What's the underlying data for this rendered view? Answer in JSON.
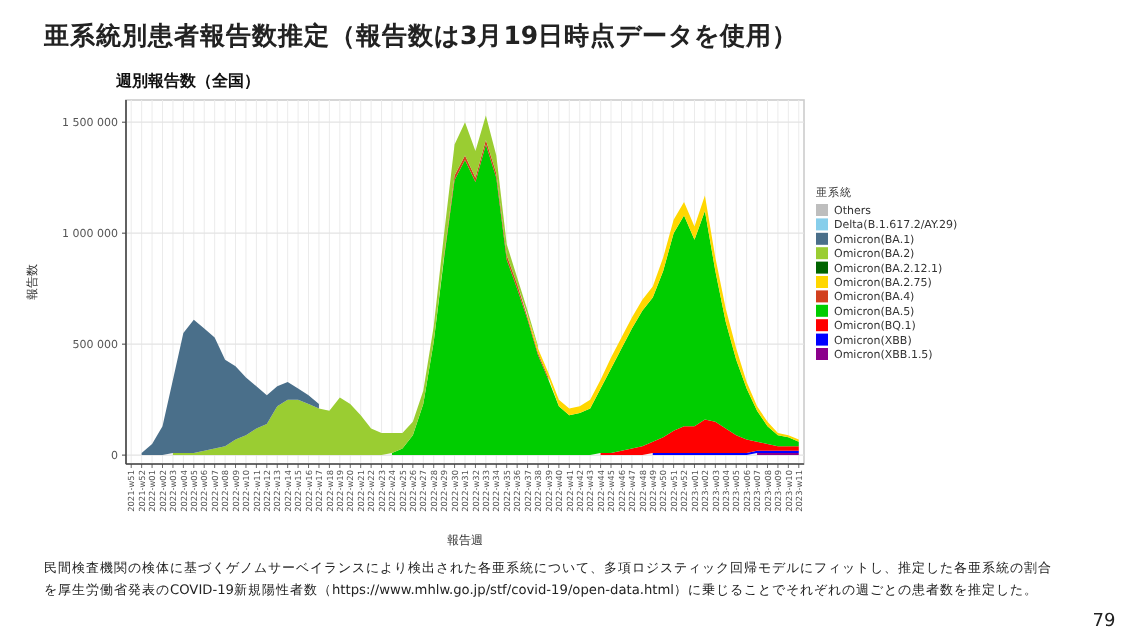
{
  "chart_data": {
    "type": "area",
    "stacked": true,
    "title": "亜系統別患者報告数推定（報告数は3月19日時点データを使用）",
    "subtitle": "週別報告数（全国）",
    "xlabel": "報告週",
    "ylabel": "報告数",
    "legend_title": "亜系統",
    "legend": "right",
    "grid": true,
    "categories": [
      "2021-w51",
      "2021-w52",
      "2022-w01",
      "2022-w02",
      "2022-w03",
      "2022-w04",
      "2022-w05",
      "2022-w06",
      "2022-w07",
      "2022-w08",
      "2022-w09",
      "2022-w10",
      "2022-w11",
      "2022-w12",
      "2022-w13",
      "2022-w14",
      "2022-w15",
      "2022-w16",
      "2022-w17",
      "2022-w18",
      "2022-w19",
      "2022-w20",
      "2022-w21",
      "2022-w22",
      "2022-w23",
      "2022-w24",
      "2022-w25",
      "2022-w26",
      "2022-w27",
      "2022-w28",
      "2022-w29",
      "2022-w30",
      "2022-w31",
      "2022-w32",
      "2022-w33",
      "2022-w34",
      "2022-w35",
      "2022-w36",
      "2022-w37",
      "2022-w38",
      "2022-w39",
      "2022-w40",
      "2022-w41",
      "2022-w42",
      "2022-w43",
      "2022-w44",
      "2022-w45",
      "2022-w46",
      "2022-w47",
      "2022-w48",
      "2022-w49",
      "2022-w50",
      "2022-w51",
      "2022-w52",
      "2023-w01",
      "2023-w02",
      "2023-w03",
      "2023-w04",
      "2023-w05",
      "2023-w06",
      "2023-w07",
      "2023-w08",
      "2023-w09",
      "2023-w10",
      "2023-w11"
    ],
    "ylim": [
      -40000,
      1600000
    ],
    "yticks": [
      0,
      {
        "value": 500000,
        "label": "500 000"
      },
      {
        "value": 1000000,
        "label": "1 000 000"
      },
      {
        "value": 1500000,
        "label": "1 500 000"
      }
    ],
    "series": [
      {
        "name": "Omicron(XBB.1.5)",
        "color": "#8b008b",
        "values": [
          null,
          null,
          null,
          null,
          null,
          null,
          null,
          null,
          null,
          null,
          null,
          null,
          null,
          null,
          null,
          null,
          null,
          null,
          null,
          null,
          null,
          null,
          null,
          null,
          null,
          null,
          null,
          null,
          null,
          null,
          null,
          null,
          null,
          null,
          null,
          null,
          null,
          null,
          null,
          null,
          null,
          null,
          null,
          null,
          null,
          null,
          null,
          null,
          null,
          null,
          null,
          null,
          null,
          null,
          null,
          null,
          null,
          null,
          null,
          null,
          10000,
          10000,
          10000,
          10000,
          10000
        ]
      },
      {
        "name": "Omicron(XBB)",
        "color": "#0000ff",
        "values": [
          null,
          null,
          null,
          null,
          null,
          null,
          null,
          null,
          null,
          null,
          null,
          null,
          null,
          null,
          null,
          null,
          null,
          null,
          null,
          null,
          null,
          null,
          null,
          null,
          null,
          null,
          null,
          null,
          null,
          null,
          null,
          null,
          null,
          null,
          null,
          null,
          null,
          null,
          null,
          null,
          null,
          null,
          null,
          null,
          null,
          null,
          null,
          null,
          null,
          null,
          10000,
          10000,
          10000,
          10000,
          10000,
          10000,
          10000,
          10000,
          10000,
          10000,
          10000,
          10000,
          10000,
          10000,
          10000
        ]
      },
      {
        "name": "Omicron(BQ.1)",
        "color": "#ff0000",
        "values": [
          null,
          null,
          null,
          null,
          null,
          null,
          null,
          null,
          null,
          null,
          null,
          null,
          null,
          null,
          null,
          null,
          null,
          null,
          null,
          null,
          null,
          null,
          null,
          null,
          null,
          null,
          null,
          null,
          null,
          null,
          null,
          null,
          null,
          null,
          null,
          null,
          null,
          null,
          null,
          null,
          null,
          null,
          null,
          null,
          null,
          10000,
          10000,
          20000,
          30000,
          40000,
          50000,
          70000,
          100000,
          120000,
          120000,
          150000,
          140000,
          110000,
          80000,
          60000,
          40000,
          30000,
          20000,
          20000,
          20000
        ]
      },
      {
        "name": "Omicron(BA.5)",
        "color": "#00cd00",
        "values": [
          null,
          null,
          null,
          null,
          null,
          null,
          null,
          null,
          null,
          null,
          null,
          null,
          null,
          null,
          null,
          null,
          null,
          null,
          null,
          null,
          null,
          null,
          null,
          null,
          null,
          10000,
          30000,
          90000,
          230000,
          510000,
          890000,
          1240000,
          1330000,
          1230000,
          1400000,
          1250000,
          880000,
          750000,
          610000,
          450000,
          340000,
          220000,
          180000,
          190000,
          210000,
          290000,
          380000,
          460000,
          540000,
          610000,
          650000,
          750000,
          890000,
          950000,
          840000,
          940000,
          680000,
          480000,
          340000,
          230000,
          140000,
          80000,
          50000,
          40000,
          20000
        ]
      },
      {
        "name": "Omicron(BA.4)",
        "color": "#d2401e",
        "values": [
          null,
          null,
          null,
          null,
          null,
          null,
          null,
          null,
          null,
          null,
          null,
          null,
          null,
          null,
          null,
          null,
          null,
          null,
          null,
          null,
          null,
          null,
          null,
          null,
          null,
          null,
          null,
          null,
          null,
          null,
          10000,
          20000,
          20000,
          20000,
          20000,
          20000,
          20000,
          20000,
          10000,
          10000,
          10000,
          null,
          null,
          null,
          null,
          null,
          null,
          null,
          null,
          null,
          null,
          null,
          null,
          null,
          null,
          null,
          null,
          null,
          null,
          null,
          null,
          null,
          null,
          null,
          null
        ]
      },
      {
        "name": "Omicron(BA.2.75)",
        "color": "#ffd700",
        "values": [
          null,
          null,
          null,
          null,
          null,
          null,
          null,
          null,
          null,
          null,
          null,
          null,
          null,
          null,
          null,
          null,
          null,
          null,
          null,
          null,
          null,
          null,
          null,
          null,
          null,
          null,
          null,
          null,
          null,
          null,
          null,
          null,
          null,
          null,
          null,
          null,
          null,
          null,
          10000,
          20000,
          20000,
          30000,
          30000,
          30000,
          40000,
          40000,
          50000,
          50000,
          50000,
          50000,
          50000,
          60000,
          60000,
          60000,
          60000,
          70000,
          60000,
          60000,
          50000,
          30000,
          20000,
          20000,
          10000,
          10000,
          10000
        ]
      },
      {
        "name": "Omicron(BA.2.12.1)",
        "color": "#006400",
        "values": [
          null,
          null,
          null,
          null,
          null,
          null,
          null,
          null,
          null,
          null,
          null,
          null,
          null,
          null,
          null,
          null,
          null,
          null,
          null,
          null,
          null,
          null,
          null,
          null,
          null,
          null,
          null,
          null,
          null,
          null,
          null,
          null,
          null,
          null,
          null,
          null,
          null,
          null,
          null,
          null,
          null,
          null,
          null,
          null,
          null,
          null,
          null,
          null,
          null,
          null,
          null,
          null,
          null,
          null,
          null,
          null,
          null,
          null,
          null,
          null,
          null,
          null,
          null,
          null,
          null
        ]
      },
      {
        "name": "Omicron(BA.2)",
        "color": "#9acd32",
        "values": [
          null,
          null,
          null,
          null,
          10000,
          10000,
          10000,
          20000,
          30000,
          40000,
          70000,
          90000,
          120000,
          140000,
          220000,
          250000,
          250000,
          230000,
          210000,
          200000,
          260000,
          230000,
          180000,
          120000,
          100000,
          90000,
          70000,
          60000,
          60000,
          70000,
          100000,
          140000,
          150000,
          120000,
          110000,
          80000,
          50000,
          30000,
          20000,
          10000,
          null,
          null,
          null,
          null,
          null,
          null,
          null,
          null,
          null,
          null,
          null,
          null,
          null,
          null,
          null,
          null,
          null,
          null,
          null,
          null,
          null,
          null,
          null,
          null,
          null
        ]
      },
      {
        "name": "Omicron(BA.1)",
        "color": "#4a6f8a",
        "values": [
          null,
          10000,
          50000,
          130000,
          330000,
          540000,
          600000,
          550000,
          500000,
          390000,
          330000,
          260000,
          190000,
          130000,
          90000,
          80000,
          50000,
          40000,
          20000,
          null,
          null,
          null,
          null,
          null,
          null,
          null,
          null,
          null,
          null,
          null,
          null,
          null,
          null,
          null,
          null,
          null,
          null,
          null,
          null,
          null,
          null,
          null,
          null,
          null,
          null,
          null,
          null,
          null,
          null,
          null,
          null,
          null,
          null,
          null,
          null,
          null,
          null,
          null,
          null,
          null,
          null,
          null,
          null,
          null,
          null
        ]
      },
      {
        "name": "Delta(B.1.617.2/AY.29)",
        "color": "#87ceeb",
        "values": [
          null,
          null,
          null,
          null,
          null,
          null,
          null,
          null,
          null,
          null,
          null,
          null,
          null,
          null,
          null,
          null,
          null,
          null,
          null,
          null,
          null,
          null,
          null,
          null,
          null,
          null,
          null,
          null,
          null,
          null,
          null,
          null,
          null,
          null,
          null,
          null,
          null,
          null,
          null,
          null,
          null,
          null,
          null,
          null,
          null,
          null,
          null,
          null,
          null,
          null,
          null,
          null,
          null,
          null,
          null,
          null,
          null,
          null,
          null,
          null,
          null,
          null,
          null,
          null,
          null
        ]
      },
      {
        "name": "Others",
        "color": "#bebebe",
        "values": [
          null,
          null,
          null,
          null,
          null,
          null,
          null,
          null,
          null,
          null,
          null,
          null,
          null,
          null,
          null,
          null,
          null,
          null,
          null,
          null,
          null,
          null,
          null,
          null,
          null,
          null,
          null,
          null,
          null,
          null,
          null,
          null,
          null,
          null,
          null,
          null,
          null,
          null,
          null,
          null,
          null,
          null,
          null,
          null,
          null,
          null,
          null,
          null,
          null,
          null,
          null,
          null,
          null,
          null,
          null,
          null,
          null,
          null,
          null,
          null,
          null,
          null,
          null,
          null,
          null
        ]
      }
    ],
    "annotations": [
      "民間検査機関の検体に基づくゲノムサーベイランスにより検出された各亜系統について、多項ロジスティック回帰モデルにフィットし、推定した各亜系統の割合",
      "を厚生労働省発表のCOVID-19新規陽性者数（https://www.mhlw.go.jp/stf/covid-19/open-data.html）に乗じることでそれぞれの週ごとの患者数を推定した。",
      "79"
    ]
  }
}
